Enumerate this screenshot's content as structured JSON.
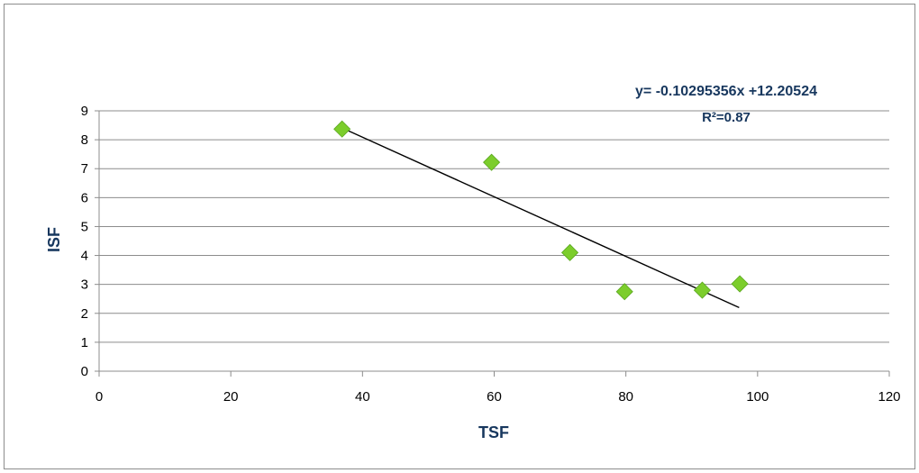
{
  "chart_data": {
    "type": "scatter",
    "title": "",
    "xlabel": "TSF",
    "ylabel": "ISF",
    "xlim": [
      0,
      120
    ],
    "ylim": [
      0,
      9
    ],
    "x_ticks": [
      "0",
      "20",
      "40",
      "60",
      "80",
      "100",
      "120"
    ],
    "y_ticks": [
      "0",
      "1",
      "2",
      "3",
      "4",
      "5",
      "6",
      "7",
      "8",
      "9"
    ],
    "grid": "horizontal",
    "legend": "none",
    "series": [
      {
        "marker": "diamond",
        "color": "#7ccd2c",
        "points": [
          {
            "x": 36.9,
            "y": 8.37
          },
          {
            "x": 59.6,
            "y": 7.22
          },
          {
            "x": 71.5,
            "y": 4.1
          },
          {
            "x": 79.8,
            "y": 2.75
          },
          {
            "x": 91.6,
            "y": 2.8
          },
          {
            "x": 97.3,
            "y": 3.02
          }
        ]
      }
    ],
    "trendline": {
      "color": "#000000",
      "x_range": [
        37,
        97.2
      ],
      "equation_label": "y= -0.10295356x +12.20524",
      "r2_label": "R²=0.87"
    }
  }
}
